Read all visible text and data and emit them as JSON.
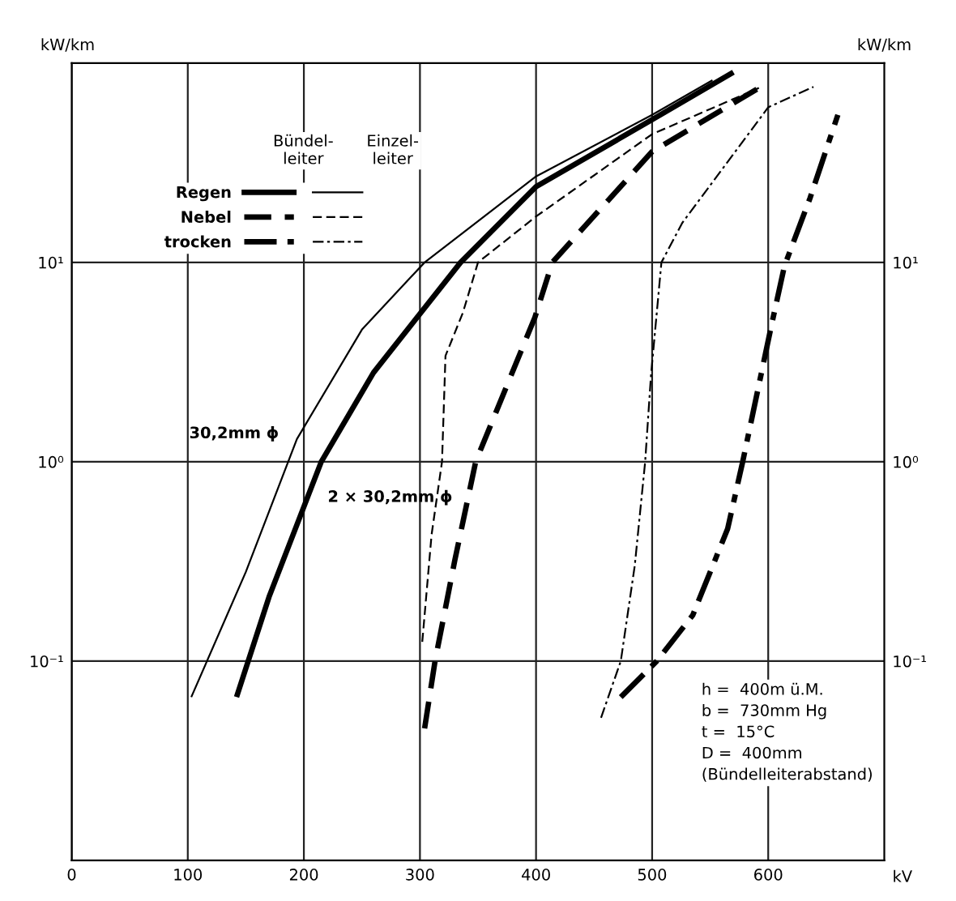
{
  "chart_data": {
    "type": "line",
    "xlabel": "kV",
    "ylabel": "kW/km",
    "y2label": "kW/km",
    "xlim": [
      0,
      700
    ],
    "xticks": [
      0,
      100,
      200,
      300,
      400,
      500,
      600
    ],
    "ylim": [
      0.01,
      100
    ],
    "yticks": [
      {
        "value": 0.1,
        "label": "10⁻¹"
      },
      {
        "value": 1,
        "label": "10⁰"
      },
      {
        "value": 10,
        "label": "10¹"
      }
    ],
    "log": "y",
    "grid": true,
    "legend": "top left",
    "series": [
      {
        "name": "Regen",
        "color": "#000000",
        "line_style": "solid",
        "x": [
          142,
          170,
          215,
          260,
          335,
          400,
          500,
          570
        ],
        "values": [
          0.066,
          0.21,
          1.0,
          2.8,
          10,
          24,
          52,
          90
        ]
      },
      {
        "name": "Nebel",
        "color": "#000000",
        "line_style": "dashed",
        "x": [
          304,
          313,
          330,
          348,
          399,
          414,
          500,
          592
        ],
        "values": [
          0.046,
          0.1,
          0.32,
          1.0,
          5.3,
          10,
          36,
          75
        ]
      },
      {
        "name": "trocken",
        "color": "#000000",
        "line_style": "dashdot",
        "x": [
          473,
          504,
          535,
          565,
          578,
          603,
          614,
          636,
          660
        ],
        "values": [
          0.066,
          0.1,
          0.17,
          0.46,
          1.0,
          4.9,
          9.6,
          21,
          55
        ]
      },
      {
        "color": "#000000",
        "line_style": "solid",
        "x": [
          103,
          150,
          194,
          250,
          304,
          400,
          500,
          552
        ],
        "values": [
          0.066,
          0.28,
          1.3,
          4.6,
          10,
          27,
          55,
          82
        ]
      },
      {
        "color": "#000000",
        "line_style": "dashed",
        "x": [
          302,
          310,
          319,
          322,
          337,
          350,
          400,
          500,
          592
        ],
        "values": [
          0.125,
          0.43,
          1.0,
          3.4,
          5.6,
          10,
          17,
          44,
          75
        ]
      },
      {
        "color": "#000000",
        "line_style": "dashdot",
        "x": [
          456,
          473,
          485,
          494,
          499,
          508,
          526,
          600,
          639
        ],
        "values": [
          0.052,
          0.1,
          0.3,
          1.0,
          2.7,
          10,
          15.8,
          60,
          76
        ]
      }
    ],
    "annotations": [
      "Bündel-\nleiter",
      "Einzel-\nleiter",
      "h =  400m ü.M.\nb =  730mm Hg\nt =  15°C\nD =  400mm\n(Bündelleiterabstand)",
      "30,2mm ϕ",
      "2 × 30,2mm ϕ"
    ]
  }
}
